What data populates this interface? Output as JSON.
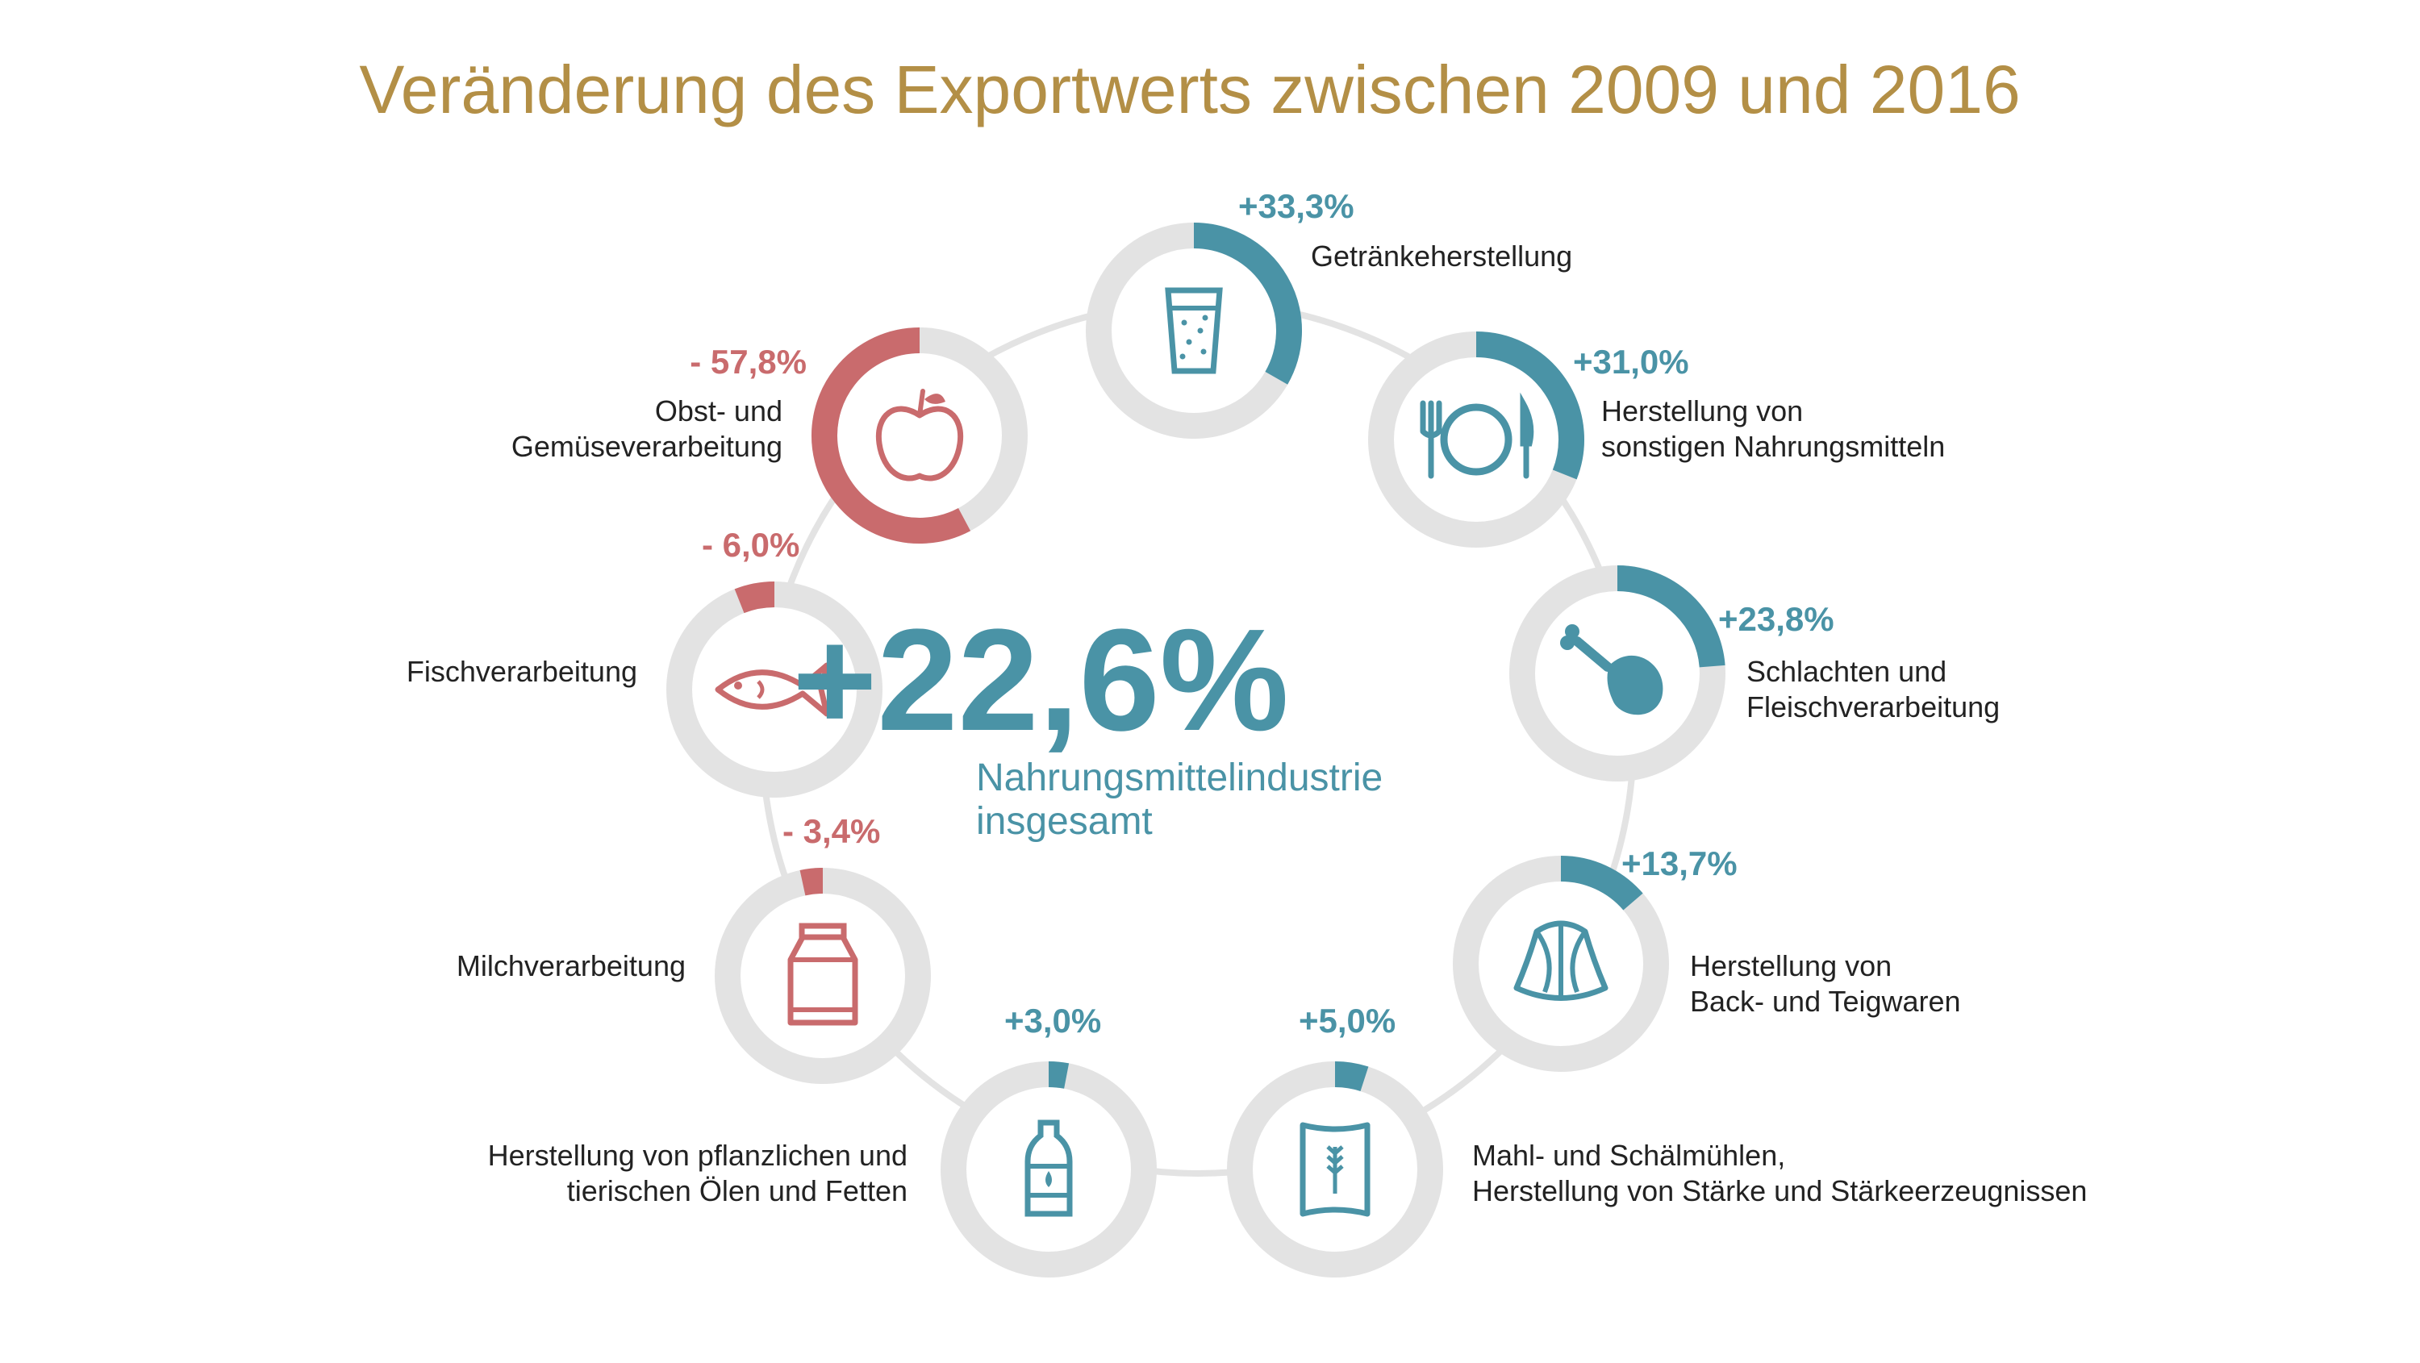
{
  "colors": {
    "title": "#B38F46",
    "positive": "#4A93A6",
    "negative": "#C96B6D",
    "track": "#E3E3E3",
    "text": "#222222"
  },
  "chart_data": {
    "type": "donut-set",
    "title": "Veränderung des Exportwerts zwischen 2009 und 2016",
    "total": {
      "value_label": "+22,6%",
      "value": 22.6,
      "caption": [
        "Nahrungsmittelindustrie",
        "insgesamt"
      ]
    },
    "items": [
      {
        "label": [
          "Getränkeherstellung"
        ],
        "value": 33.3,
        "value_label": "+33,3%",
        "icon": "glass-icon"
      },
      {
        "label": [
          "Herstellung von",
          "sonstigen Nahrungsmitteln"
        ],
        "value": 31.0,
        "value_label": "+31,0%",
        "icon": "plate-cutlery-icon"
      },
      {
        "label": [
          "Schlachten und",
          "Fleischverarbeitung"
        ],
        "value": 23.8,
        "value_label": "+23,8%",
        "icon": "drumstick-icon"
      },
      {
        "label": [
          "Herstellung von",
          "Back- und Teigwaren"
        ],
        "value": 13.7,
        "value_label": "+13,7%",
        "icon": "croissant-icon"
      },
      {
        "label": [
          "Mahl- und Schälmühlen,",
          "Herstellung von Stärke und Stärkeerzeugnissen"
        ],
        "value": 5.0,
        "value_label": "+5,0%",
        "icon": "flour-sack-icon"
      },
      {
        "label": [
          "Herstellung von pflanzlichen und",
          "tierischen Ölen und Fetten"
        ],
        "value": 3.0,
        "value_label": "+3,0%",
        "icon": "bottle-icon"
      },
      {
        "label": [
          "Milchverarbeitung"
        ],
        "value": -3.4,
        "value_label": "- 3,4%",
        "icon": "milk-carton-icon"
      },
      {
        "label": [
          "Fischverarbeitung"
        ],
        "value": -6.0,
        "value_label": "- 6,0%",
        "icon": "fish-icon"
      },
      {
        "label": [
          "Obst- und",
          "Gemüseverarbeitung"
        ],
        "value": -57.8,
        "value_label": "- 57,8%",
        "icon": "apple-icon"
      }
    ]
  }
}
